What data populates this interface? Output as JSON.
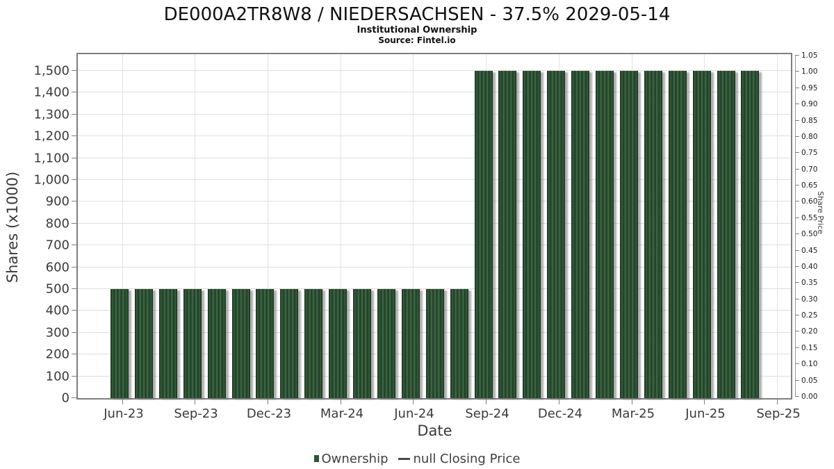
{
  "header": {
    "title": "DE000A2TR8W8 / NIEDERSACHSEN - 37.5% 2029-05-14",
    "subtitle": "Institutional Ownership",
    "source": "Source: Fintel.io"
  },
  "axes": {
    "x_label": "Date",
    "y_left_label": "Shares (x1000)",
    "y_right_label": "Share Price",
    "x_tick_labels": [
      "Jun-23",
      "Sep-23",
      "Dec-23",
      "Mar-24",
      "Jun-24",
      "Sep-24",
      "Dec-24",
      "Mar-25",
      "Jun-25",
      "Sep-25"
    ],
    "y_left_tick_labels": [
      "0",
      "100",
      "200",
      "300",
      "400",
      "500",
      "600",
      "700",
      "800",
      "900",
      "1,000",
      "1,100",
      "1,200",
      "1,300",
      "1,400",
      "1,500"
    ],
    "y_right_tick_labels": [
      "0.00",
      "0.05",
      "0.10",
      "0.15",
      "0.20",
      "0.25",
      "0.30",
      "0.35",
      "0.40",
      "0.45",
      "0.50",
      "0.55",
      "0.60",
      "0.65",
      "0.70",
      "0.75",
      "0.80",
      "0.85",
      "0.90",
      "0.95",
      "1.00",
      "1.05"
    ]
  },
  "legend": {
    "ownership_label": "Ownership",
    "price_label": "null Closing Price"
  },
  "colors": {
    "bar_mid": "#2f5636",
    "bar_dark": "#1f3d26",
    "bar_light": "#47714e",
    "bar_edge_shade": "rgba(0,0,0,0.28)",
    "legend_dash": "#4a4a4a",
    "grid": "#dedede",
    "axis": "#7e7e7e",
    "text": "#3a3a3a"
  },
  "chart_data": {
    "type": "bar",
    "title": "DE000A2TR8W8 / NIEDERSACHSEN - 37.5% 2029-05-14",
    "subtitle": "Institutional Ownership",
    "source": "Source: Fintel.io",
    "xlabel": "Date",
    "ylabel_left": "Shares (x1000)",
    "ylabel_right": "Share Price",
    "ylim_left": [
      0,
      1500
    ],
    "ytick_step_left": 100,
    "ylim_right": [
      0.0,
      1.05
    ],
    "ytick_step_right": 0.05,
    "grid": true,
    "legend_position": "bottom-center",
    "categories": [
      "Jun-23",
      "Jul-23",
      "Aug-23",
      "Sep-23",
      "Oct-23",
      "Nov-23",
      "Dec-23",
      "Jan-24",
      "Feb-24",
      "Mar-24",
      "Apr-24",
      "May-24",
      "Jun-24",
      "Jul-24",
      "Aug-24",
      "Sep-24",
      "Oct-24",
      "Nov-24",
      "Dec-24",
      "Jan-25",
      "Feb-25",
      "Mar-25",
      "Apr-25",
      "May-25",
      "Jun-25",
      "Jul-25",
      "Aug-25"
    ],
    "series": [
      {
        "name": "Ownership",
        "type": "bar",
        "axis": "left",
        "units": "shares x1000",
        "values": [
          500,
          500,
          500,
          500,
          500,
          500,
          500,
          500,
          500,
          500,
          500,
          500,
          500,
          500,
          500,
          1500,
          1500,
          1500,
          1500,
          1500,
          1500,
          1500,
          1500,
          1500,
          1500,
          1500,
          1500
        ]
      },
      {
        "name": "null Closing Price",
        "type": "line",
        "axis": "right",
        "values": []
      }
    ]
  }
}
